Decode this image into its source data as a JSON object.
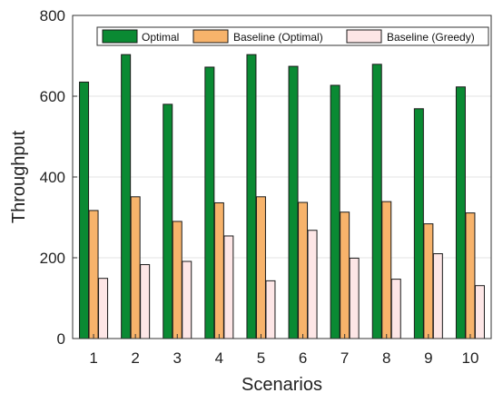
{
  "chart_data": {
    "type": "bar",
    "title": "",
    "xlabel": "Scenarios",
    "ylabel": "Throughput",
    "categories": [
      "1",
      "2",
      "3",
      "4",
      "5",
      "6",
      "7",
      "8",
      "9",
      "10"
    ],
    "ylim": [
      0,
      800
    ],
    "yticks": [
      "0",
      "200",
      "400",
      "600",
      "800"
    ],
    "grid": true,
    "legend_position": "top",
    "series": [
      {
        "name": "Optimal",
        "color": "#0a8a33",
        "values": [
          635,
          703,
          580,
          672,
          703,
          674,
          627,
          679,
          569,
          623
        ]
      },
      {
        "name": "Baseline (Optimal)",
        "color": "#f7b36b",
        "values": [
          317,
          351,
          290,
          336,
          351,
          337,
          313,
          339,
          284,
          311
        ]
      },
      {
        "name": "Baseline (Greedy)",
        "color": "#fde6e6",
        "values": [
          149,
          183,
          191,
          254,
          143,
          268,
          199,
          147,
          210,
          131
        ]
      }
    ]
  }
}
